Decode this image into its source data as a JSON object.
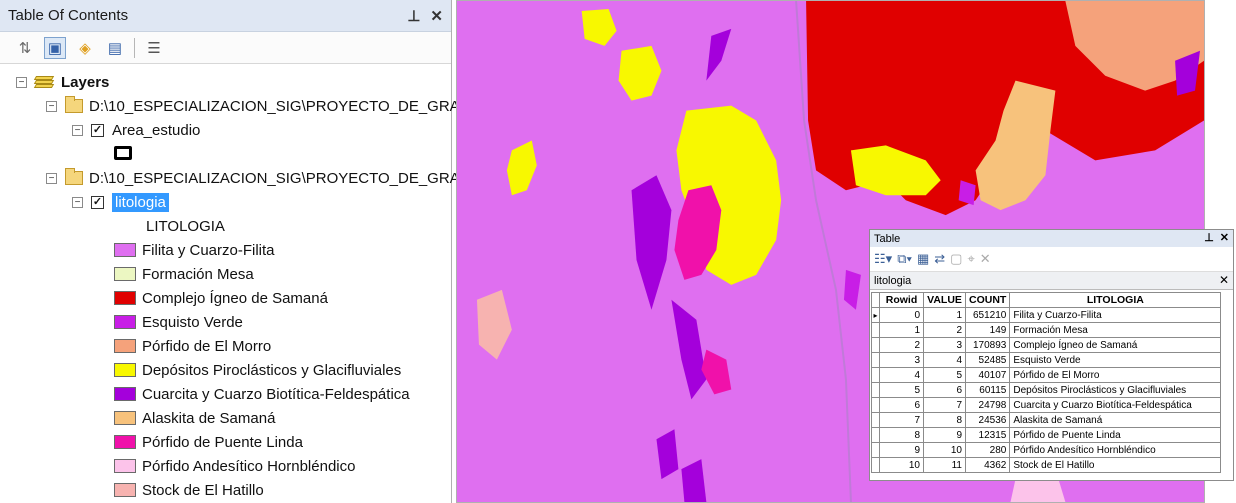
{
  "toc": {
    "title": "Table Of Contents",
    "pin": "p",
    "close": "×",
    "toolbar": [
      "list-by-drawing-order",
      "list-by-source",
      "list-by-visibility",
      "list-by-selection",
      "options"
    ],
    "root_label": "Layers",
    "group1_path": "D:\\10_ESPECIALIZACION_SIG\\PROYECTO_DE_GRA",
    "layer1_name": "Area_estudio",
    "group2_path": "D:\\10_ESPECIALIZACION_SIG\\PROYECTO_DE_GRA",
    "layer2_name": "litologia",
    "field_heading": "LITOLOGIA",
    "legend": [
      {
        "label": "Filita y Cuarzo-Filita",
        "color": "#df6ff0"
      },
      {
        "label": "Formación Mesa",
        "color": "#ecf7c2"
      },
      {
        "label": "Complejo Ígneo de Samaná",
        "color": "#e00000"
      },
      {
        "label": "Esquisto Verde",
        "color": "#c81ee6"
      },
      {
        "label": "Pórfido de El Morro",
        "color": "#f5a27b"
      },
      {
        "label": "Depósitos Piroclásticos y Glacifluviales",
        "color": "#f8f800"
      },
      {
        "label": "Cuarcita y Cuarzo Biotítica-Feldespática",
        "color": "#a400db"
      },
      {
        "label": "Alaskita de Samaná",
        "color": "#f7c27c"
      },
      {
        "label": "Pórfido de Puente Linda",
        "color": "#f011aa"
      },
      {
        "label": "Pórfido Andesítico Hornbléndico",
        "color": "#fcc3ea"
      },
      {
        "label": "Stock de El Hatillo",
        "color": "#f7b3b0"
      }
    ]
  },
  "table_window": {
    "title": "Table",
    "tab_name": "litologia",
    "columns": [
      "Rowid",
      "VALUE",
      "COUNT",
      "LITOLOGIA"
    ],
    "rows": [
      [
        "0",
        "1",
        "651210",
        "Filita y Cuarzo-Filita"
      ],
      [
        "1",
        "2",
        "149",
        "Formación Mesa"
      ],
      [
        "2",
        "3",
        "170893",
        "Complejo Ígneo de Samaná"
      ],
      [
        "3",
        "4",
        "52485",
        "Esquisto Verde"
      ],
      [
        "4",
        "5",
        "40107",
        "Pórfido de El Morro"
      ],
      [
        "5",
        "6",
        "60115",
        "Depósitos Piroclásticos y Glacifluviales"
      ],
      [
        "6",
        "7",
        "24798",
        "Cuarcita y Cuarzo Biotítica-Feldespática"
      ],
      [
        "7",
        "8",
        "24536",
        "Alaskita de Samaná"
      ],
      [
        "8",
        "9",
        "12315",
        "Pórfido de Puente Linda"
      ],
      [
        "9",
        "10",
        "280",
        "Pórfido Andesítico Hornbléndico"
      ],
      [
        "10",
        "11",
        "4362",
        "Stock de El Hatillo"
      ]
    ]
  }
}
